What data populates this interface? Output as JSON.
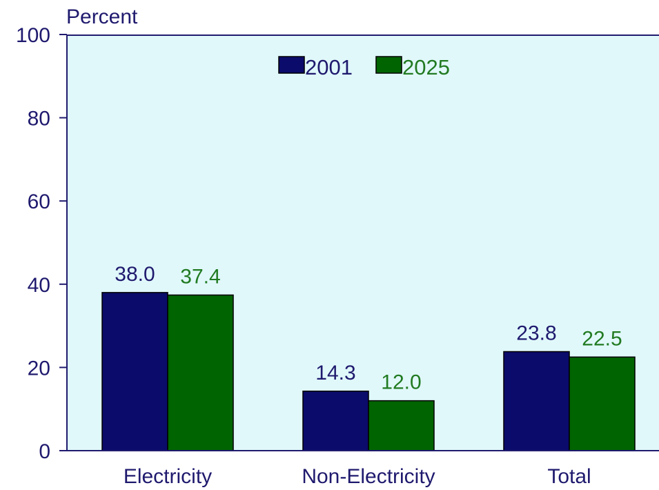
{
  "chart_data": {
    "type": "bar",
    "ylabel": "Percent",
    "ylim": [
      0,
      100
    ],
    "yticks": [
      0,
      20,
      40,
      60,
      80,
      100
    ],
    "categories": [
      "Electricity",
      "Non-Electricity",
      "Total"
    ],
    "series": [
      {
        "name": "2001",
        "values": [
          38.0,
          14.3,
          23.8
        ],
        "labels": [
          "38.0",
          "14.3",
          "23.8"
        ],
        "color": "#0b0b6b",
        "label_color": "#1f1a6e"
      },
      {
        "name": "2025",
        "values": [
          37.4,
          12.0,
          22.5
        ],
        "labels": [
          "37.4",
          "12.0",
          "22.5"
        ],
        "color": "#006400",
        "label_color": "#217a21"
      }
    ],
    "legend_position": "top-center",
    "grid": false,
    "plot_background": "#e0f8fa",
    "axis_color": "#1f1a6e"
  }
}
